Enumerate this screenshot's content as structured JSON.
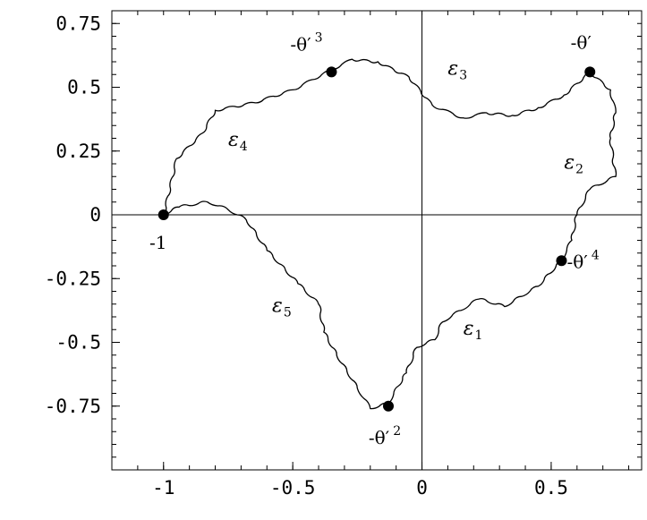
{
  "chart_data": {
    "type": "scatter",
    "title": "",
    "xlabel": "",
    "ylabel": "",
    "xlim": [
      -1.2,
      0.85
    ],
    "ylim": [
      -1.0,
      0.8
    ],
    "grid": false,
    "x_ticks": [
      {
        "value": -1,
        "label": "-1"
      },
      {
        "value": -0.5,
        "label": "-0.5"
      },
      {
        "value": 0,
        "label": "0"
      },
      {
        "value": 0.5,
        "label": "0.5"
      }
    ],
    "y_ticks": [
      {
        "value": 0.75,
        "label": "0.75"
      },
      {
        "value": 0.5,
        "label": "0.5"
      },
      {
        "value": 0.25,
        "label": "0.25"
      },
      {
        "value": 0,
        "label": "0"
      },
      {
        "value": -0.25,
        "label": "-0.25"
      },
      {
        "value": -0.5,
        "label": "-0.5"
      },
      {
        "value": -0.75,
        "label": "-0.75"
      }
    ],
    "boundary_outline": [
      [
        -1.0,
        0.0
      ],
      [
        -0.95,
        0.22
      ],
      [
        -0.85,
        0.32
      ],
      [
        -0.8,
        0.41
      ],
      [
        -0.65,
        0.44
      ],
      [
        -0.5,
        0.49
      ],
      [
        -0.35,
        0.57
      ],
      [
        -0.27,
        0.61
      ],
      [
        -0.17,
        0.6
      ],
      [
        -0.05,
        0.54
      ],
      [
        0.04,
        0.43
      ],
      [
        0.16,
        0.38
      ],
      [
        0.25,
        0.4
      ],
      [
        0.35,
        0.39
      ],
      [
        0.45,
        0.42
      ],
      [
        0.55,
        0.47
      ],
      [
        0.65,
        0.56
      ],
      [
        0.73,
        0.49
      ],
      [
        0.75,
        0.4
      ],
      [
        0.73,
        0.3
      ],
      [
        0.75,
        0.15
      ],
      [
        0.65,
        0.1
      ],
      [
        0.6,
        0.0
      ],
      [
        0.58,
        -0.1
      ],
      [
        0.54,
        -0.18
      ],
      [
        0.45,
        -0.28
      ],
      [
        0.32,
        -0.36
      ],
      [
        0.22,
        -0.33
      ],
      [
        0.08,
        -0.42
      ],
      [
        0.05,
        -0.49
      ],
      [
        -0.02,
        -0.52
      ],
      [
        -0.06,
        -0.62
      ],
      [
        -0.09,
        -0.67
      ],
      [
        -0.13,
        -0.74
      ],
      [
        -0.2,
        -0.76
      ],
      [
        -0.25,
        -0.68
      ],
      [
        -0.33,
        -0.55
      ],
      [
        -0.38,
        -0.46
      ],
      [
        -0.4,
        -0.35
      ],
      [
        -0.48,
        -0.27
      ],
      [
        -0.6,
        -0.14
      ],
      [
        -0.68,
        -0.02
      ],
      [
        -0.75,
        0.02
      ],
      [
        -0.83,
        0.05
      ],
      [
        -0.94,
        0.03
      ],
      [
        -1.0,
        0.0
      ]
    ],
    "points": [
      {
        "x": -1.0,
        "y": 0.0,
        "label": "-1"
      },
      {
        "x": 0.65,
        "y": 0.56,
        "label": "-θ′"
      },
      {
        "x": -0.13,
        "y": -0.75,
        "label": "-θ′",
        "sup": "2"
      },
      {
        "x": -0.35,
        "y": 0.56,
        "label": "-θ′",
        "sup": "3"
      },
      {
        "x": 0.54,
        "y": -0.18,
        "label": "-θ′",
        "sup": "4"
      }
    ],
    "region_labels": [
      {
        "text": "ε",
        "sub": "1",
        "x": 0.16,
        "y": -0.47
      },
      {
        "text": "ε",
        "sub": "2",
        "x": 0.55,
        "y": 0.18
      },
      {
        "text": "ε",
        "sub": "3",
        "x": 0.1,
        "y": 0.55
      },
      {
        "text": "ε",
        "sub": "4",
        "x": -0.75,
        "y": 0.27
      },
      {
        "text": "ε",
        "sub": "5",
        "x": -0.58,
        "y": -0.38
      }
    ]
  }
}
